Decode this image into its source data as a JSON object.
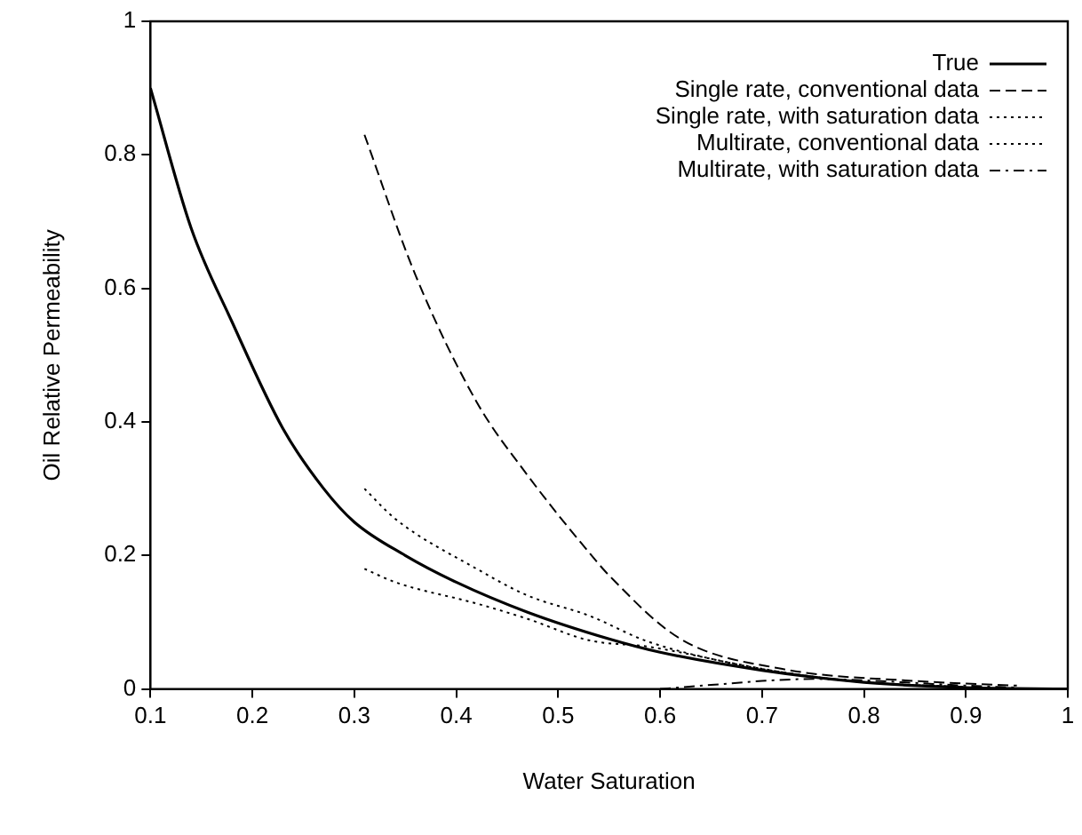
{
  "chart_data": {
    "type": "line",
    "xlabel": "Water Saturation",
    "ylabel": "Oil Relative Permeability",
    "xlim": [
      0.1,
      1
    ],
    "ylim": [
      0,
      1
    ],
    "xticks": [
      0.1,
      0.2,
      0.3,
      0.4,
      0.5,
      0.6,
      0.7,
      0.8,
      0.9,
      1
    ],
    "yticks": [
      0,
      0.2,
      0.4,
      0.6,
      0.8,
      1
    ],
    "grid": false,
    "legend": "top right",
    "marker": "none",
    "series": [
      {
        "name": "True",
        "color": "#000000",
        "line_style": "solid",
        "x": [
          0.1,
          0.14,
          0.18,
          0.23,
          0.27,
          0.3,
          0.35,
          0.4,
          0.47,
          0.55,
          0.6,
          0.7,
          0.8,
          0.9,
          1
        ],
        "values": [
          0.9,
          0.69,
          0.55,
          0.39,
          0.3,
          0.25,
          0.2,
          0.16,
          0.115,
          0.075,
          0.055,
          0.028,
          0.01,
          0.002,
          0
        ]
      },
      {
        "name": "Single rate, conventional data",
        "color": "#000000",
        "line_style": "dashed",
        "x": [
          0.31,
          0.36,
          0.42,
          0.47,
          0.53,
          0.55,
          0.62,
          0.72,
          0.85,
          0.95
        ],
        "values": [
          0.83,
          0.62,
          0.43,
          0.32,
          0.205,
          0.17,
          0.075,
          0.03,
          0.012,
          0.005
        ]
      },
      {
        "name": "Single rate, with saturation data",
        "color": "#000000",
        "line_style": "dotted",
        "x": [
          0.31,
          0.34,
          0.42,
          0.47,
          0.53,
          0.59,
          0.72,
          0.8,
          0.9
        ],
        "values": [
          0.3,
          0.255,
          0.18,
          0.14,
          0.11,
          0.07,
          0.025,
          0.01,
          0.003
        ]
      },
      {
        "name": "Multirate, conventional data",
        "color": "#000000",
        "line_style": "dotted",
        "x": [
          0.31,
          0.34,
          0.42,
          0.47,
          0.53,
          0.59,
          0.7,
          0.8,
          0.9
        ],
        "values": [
          0.18,
          0.16,
          0.128,
          0.105,
          0.073,
          0.063,
          0.03,
          0.01,
          0.003
        ]
      },
      {
        "name": "Multirate, with saturation data",
        "color": "#000000",
        "line_style": "dashdot",
        "x": [
          0.6,
          0.65,
          0.7,
          0.75,
          0.8,
          0.85,
          0.9,
          0.95
        ],
        "values": [
          0,
          0.006,
          0.012,
          0.015,
          0.013,
          0.009,
          0.005,
          0.002
        ]
      }
    ]
  }
}
